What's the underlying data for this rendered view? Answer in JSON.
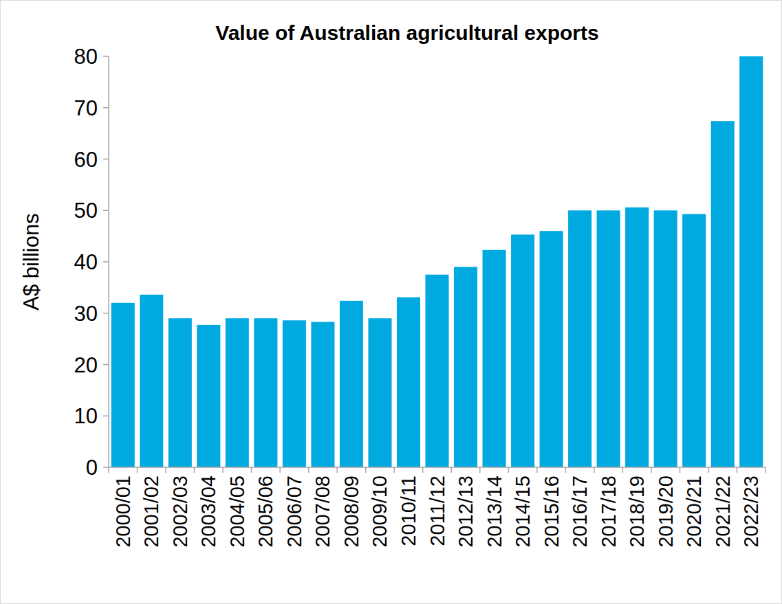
{
  "chart_data": {
    "type": "bar",
    "title": "Value of Australian agricultural exports",
    "y_label": "A$ billions",
    "categories": [
      "2000/01",
      "2001/02",
      "2002/03",
      "2003/04",
      "2004/05",
      "2005/06",
      "2006/07",
      "2007/08",
      "2008/09",
      "2009/10",
      "2010/11",
      "2011/12",
      "2012/13",
      "2013/14",
      "2014/15",
      "2015/16",
      "2016/17",
      "2017/18",
      "2018/19",
      "2019/20",
      "2020/21",
      "2021/22",
      "2022/23"
    ],
    "values": [
      32,
      33.6,
      29,
      27.7,
      29,
      29,
      28.6,
      28.3,
      32.4,
      29,
      33.1,
      37.5,
      39,
      42.3,
      45.3,
      46,
      50,
      50,
      50.6,
      50,
      49.3,
      67.4,
      80
    ],
    "color": "#00a9e0",
    "ylim": [
      0,
      80
    ],
    "yticks": [
      0,
      10,
      20,
      30,
      40,
      50,
      60,
      70,
      80
    ],
    "grid": false
  }
}
